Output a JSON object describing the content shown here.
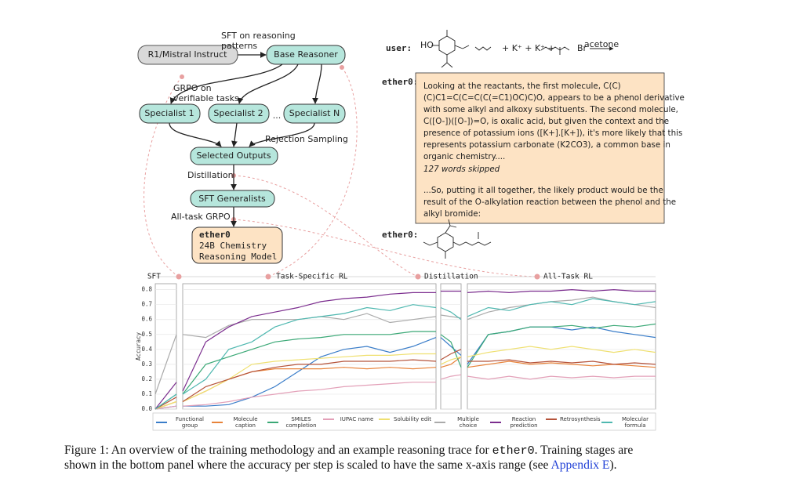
{
  "diagram": {
    "nodes": [
      {
        "label": "R1/Mistral Instruct"
      },
      {
        "label": "Base Reasoner"
      },
      {
        "label": "Specialist 1"
      },
      {
        "label": "Specialist 2"
      },
      {
        "label": "Specialist N"
      },
      {
        "label": "Selected Outputs"
      },
      {
        "label": "SFT Generalists"
      },
      {
        "lines": [
          "ether0",
          "24B Chemistry",
          "Reasoning Model"
        ]
      }
    ],
    "ellipsis": "...",
    "edge_labels": [
      {
        "lines": [
          "SFT on reasoning",
          "patterns"
        ]
      },
      {
        "lines": [
          "GRPO on",
          "verifiable tasks"
        ]
      },
      {
        "lines": [
          "Rejection Sampling"
        ]
      },
      {
        "lines": [
          "Distillation"
        ]
      },
      {
        "lines": [
          "All-task GRPO"
        ]
      }
    ]
  },
  "conversation": {
    "user_label": "user:",
    "reactant_labels": [
      "HO",
      "+ K⁺ + K⁺ +",
      "Br",
      "acetone"
    ],
    "assistant_label": "ether0:",
    "reply": {
      "paragraph1": [
        "Looking at the reactants, the first molecule, C(C)",
        "(C)C1=C(C=C(C(=C1)OC)C)O, appears to be a phenol derivative",
        "with some alkyl and alkoxy substituents. The second molecule,",
        "C([O-])([O-])=O, is oxalic acid, but given the context and the",
        "presence of potassium ions ([K+].[K+]), it's more likely that this",
        "represents potassium carbonate (K2CO3), a common base in",
        "organic chemistry...."
      ],
      "skipped": "127 words skipped",
      "paragraph2": [
        "...So, putting it all together, the likely product would be the",
        "result of the O-alkylation reaction between the phenol and the",
        "alkyl bromide:"
      ]
    },
    "product_label": "ether0:"
  },
  "chart_data": {
    "type": "line",
    "ylabel": "Accuracy",
    "stages": [
      "SFT",
      "Task-Specific RL",
      "Distillation",
      "All-Task RL"
    ],
    "ylim": [
      0,
      0.84
    ],
    "yticks": [
      {
        "value": 0,
        "label": "0.0"
      },
      0.1,
      0.2,
      0.3,
      0.4,
      0.5,
      0.6,
      0.7,
      0.8
    ],
    "grid": true,
    "series": [
      {
        "name": "Functional group",
        "color": "#3a7dc9",
        "values": [
          [
            0,
            0.02
          ],
          [
            0.02,
            0.02,
            0.03,
            0.08,
            0.15,
            0.25,
            0.35,
            0.4,
            0.42,
            0.38,
            0.42,
            0.48
          ],
          [
            0.48,
            0.42,
            0.36
          ],
          [
            0.3,
            0.5,
            0.52,
            0.55,
            0.55,
            0.53,
            0.55,
            0.52,
            0.5,
            0.48
          ]
        ]
      },
      {
        "name": "Molecule caption",
        "color": "#e8833a",
        "values": [
          [
            0,
            0.05
          ],
          [
            0.05,
            0.12,
            0.2,
            0.25,
            0.27,
            0.27,
            0.27,
            0.28,
            0.27,
            0.28,
            0.27,
            0.28
          ],
          [
            0.28,
            0.3,
            0.35
          ],
          [
            0.28,
            0.3,
            0.32,
            0.3,
            0.31,
            0.3,
            0.29,
            0.3,
            0.29,
            0.28
          ]
        ]
      },
      {
        "name": "SMILES completion",
        "color": "#3aa876",
        "values": [
          [
            0,
            0.1
          ],
          [
            0.1,
            0.3,
            0.35,
            0.4,
            0.45,
            0.47,
            0.48,
            0.5,
            0.5,
            0.5,
            0.52,
            0.52
          ],
          [
            0.5,
            0.45,
            0.28
          ],
          [
            0.28,
            0.5,
            0.52,
            0.55,
            0.55,
            0.56,
            0.54,
            0.56,
            0.55,
            0.57
          ]
        ]
      },
      {
        "name": "IUPAC name",
        "color": "#e3a0b8",
        "values": [
          [
            0,
            0.02
          ],
          [
            0.02,
            0.03,
            0.05,
            0.08,
            0.1,
            0.12,
            0.13,
            0.15,
            0.16,
            0.17,
            0.18,
            0.18
          ],
          [
            0.2,
            0.22,
            0.23
          ],
          [
            0.22,
            0.2,
            0.22,
            0.2,
            0.22,
            0.21,
            0.22,
            0.21,
            0.22,
            0.22
          ]
        ]
      },
      {
        "name": "Solubility edit",
        "color": "#efe070",
        "values": [
          [
            0,
            0.05
          ],
          [
            0.05,
            0.12,
            0.2,
            0.3,
            0.32,
            0.33,
            0.34,
            0.35,
            0.36,
            0.36,
            0.37,
            0.37
          ],
          [
            0.3,
            0.33,
            0.35
          ],
          [
            0.35,
            0.38,
            0.4,
            0.42,
            0.4,
            0.42,
            0.4,
            0.38,
            0.4,
            0.38
          ]
        ]
      },
      {
        "name": "Multiple choice",
        "color": "#aaaaaa",
        "values": [
          [
            0.1,
            0.5
          ],
          [
            0.5,
            0.48,
            0.56,
            0.6,
            0.6,
            0.6,
            0.62,
            0.6,
            0.64,
            0.58,
            0.6,
            0.62
          ],
          [
            0.63,
            0.62,
            0.61
          ],
          [
            0.6,
            0.65,
            0.68,
            0.7,
            0.72,
            0.73,
            0.75,
            0.72,
            0.7,
            0.68
          ]
        ]
      },
      {
        "name": "Reaction prediction",
        "color": "#7b2d8e",
        "values": [
          [
            0,
            0.18
          ],
          [
            0.12,
            0.45,
            0.55,
            0.62,
            0.65,
            0.68,
            0.72,
            0.74,
            0.75,
            0.77,
            0.78,
            0.78
          ],
          [
            0.79,
            0.79,
            0.79
          ],
          [
            0.78,
            0.79,
            0.78,
            0.79,
            0.79,
            0.8,
            0.79,
            0.8,
            0.79,
            0.79
          ]
        ]
      },
      {
        "name": "Retrosynthesis",
        "color": "#b5533a",
        "values": [
          [
            0,
            0.08
          ],
          [
            0.05,
            0.15,
            0.2,
            0.25,
            0.28,
            0.3,
            0.3,
            0.32,
            0.32,
            0.32,
            0.33,
            0.32
          ],
          [
            0.33,
            0.37,
            0.4
          ],
          [
            0.32,
            0.32,
            0.33,
            0.31,
            0.32,
            0.31,
            0.32,
            0.3,
            0.31,
            0.3
          ]
        ]
      },
      {
        "name": "Molecular formula",
        "color": "#4fb8b0",
        "values": [
          [
            0,
            0.1
          ],
          [
            0.1,
            0.2,
            0.4,
            0.45,
            0.55,
            0.6,
            0.62,
            0.64,
            0.68,
            0.66,
            0.7,
            0.68
          ],
          [
            0.68,
            0.65,
            0.6
          ],
          [
            0.62,
            0.68,
            0.66,
            0.7,
            0.72,
            0.7,
            0.74,
            0.72,
            0.7,
            0.72
          ]
        ]
      }
    ]
  },
  "caption": {
    "line1": [
      "Figure 1: An overview of the training methodology and an example reasoning trace for ",
      "ether0",
      ". Training stages are"
    ],
    "line2": [
      "shown in the bottom panel where the accuracy per step is scaled to have the same x-axis range (see ",
      "Appendix E",
      ")."
    ]
  }
}
